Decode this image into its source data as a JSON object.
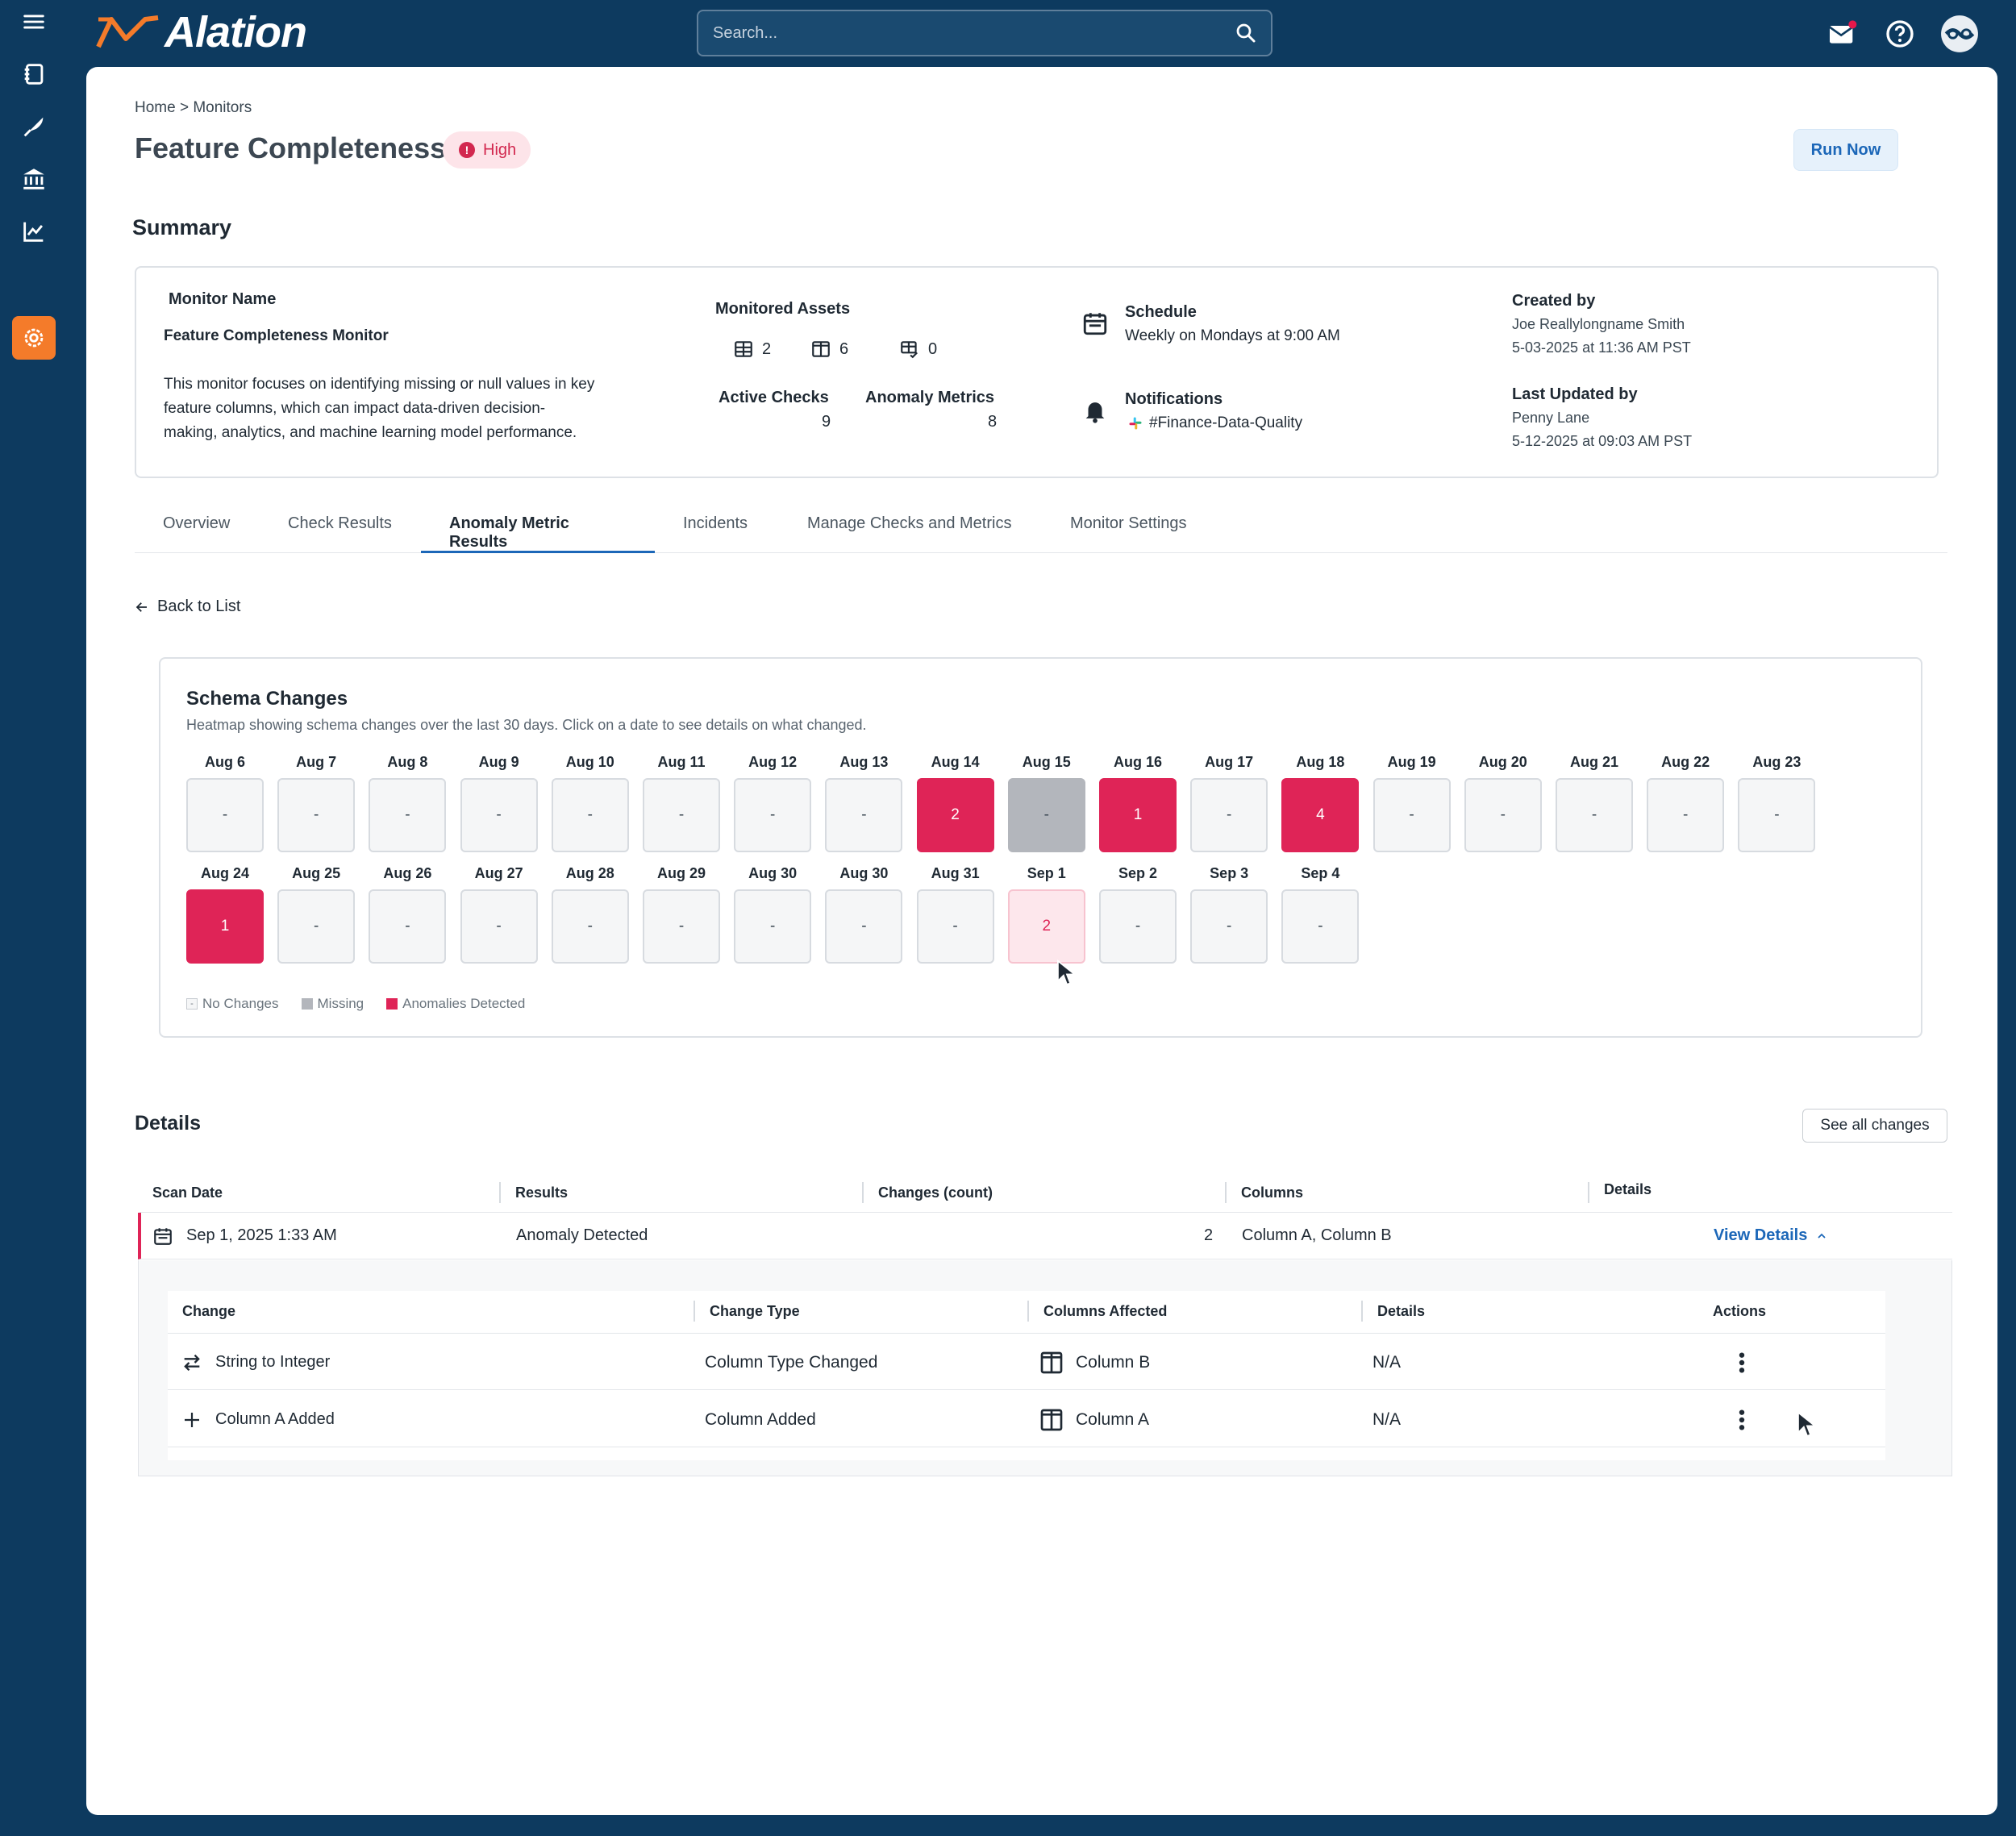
{
  "app": {
    "brand": "Alation",
    "accent": "#f47b2a",
    "nav_bg": "#0d3a5f"
  },
  "search": {
    "placeholder": "Search..."
  },
  "sidebar": {
    "items": [
      {
        "icon": "menu-icon"
      },
      {
        "icon": "catalog-icon"
      },
      {
        "icon": "compose-icon"
      },
      {
        "icon": "governance-icon"
      },
      {
        "icon": "analytics-icon"
      },
      {
        "icon": "data-quality-gear-icon",
        "active": true
      }
    ]
  },
  "header": {
    "breadcrumb": "Home > Monitors",
    "title": "Feature Completeness",
    "severity": "High",
    "run_now": "Run Now"
  },
  "summary": {
    "heading": "Summary",
    "monitor_name_label": "Monitor Name",
    "monitor_name": "Feature Completeness Monitor",
    "description_lines": [
      "This monitor focuses on identifying missing or null values in key",
      "feature columns, which can impact data-driven decision-",
      "making, analytics, and machine learning model performance."
    ],
    "monitored_assets_label": "Monitored Assets",
    "assets": {
      "tables": "2",
      "columns": "6",
      "queries": "0"
    },
    "active_checks_label": "Active Checks",
    "active_checks": "9",
    "anomaly_metrics_label": "Anomaly Metrics",
    "anomaly_metrics": "8",
    "schedule_label": "Schedule",
    "schedule": "Weekly on Mondays at 9:00 AM",
    "notifications_label": "Notifications",
    "notifications": "#Finance-Data-Quality",
    "created_by_label": "Created by",
    "created_by": "Joe Reallylongname Smith",
    "created_at": "5-03-2025 at 11:36 AM PST",
    "updated_by_label": "Last Updated by",
    "updated_by": "Penny Lane",
    "updated_at": "5-12-2025 at 09:03 AM PST"
  },
  "tabs": [
    "Overview",
    "Check Results",
    "Anomaly Metric Results",
    "Incidents",
    "Manage Checks and Metrics",
    "Monitor Settings"
  ],
  "active_tab": "Anomaly Metric Results",
  "back": "Back to List",
  "schema": {
    "title": "Schema Changes",
    "subtitle": "Heatmap showing schema changes over the last 30 days. Click on a date to see details on what changed.",
    "rows": [
      [
        {
          "date": "Aug 6",
          "value": "-",
          "state": "none"
        },
        {
          "date": "Aug 7",
          "value": "-",
          "state": "none"
        },
        {
          "date": "Aug 8",
          "value": "-",
          "state": "none"
        },
        {
          "date": "Aug 9",
          "value": "-",
          "state": "none"
        },
        {
          "date": "Aug 10",
          "value": "-",
          "state": "none"
        },
        {
          "date": "Aug 11",
          "value": "-",
          "state": "none"
        },
        {
          "date": "Aug 12",
          "value": "-",
          "state": "none"
        },
        {
          "date": "Aug 13",
          "value": "-",
          "state": "none"
        },
        {
          "date": "Aug 14",
          "value": "2",
          "state": "anomaly"
        },
        {
          "date": "Aug 15",
          "value": "-",
          "state": "missing"
        },
        {
          "date": "Aug 16",
          "value": "1",
          "state": "anomaly"
        },
        {
          "date": "Aug 17",
          "value": "-",
          "state": "none"
        },
        {
          "date": "Aug 18",
          "value": "4",
          "state": "anomaly"
        },
        {
          "date": "Aug 19",
          "value": "-",
          "state": "none"
        },
        {
          "date": "Aug 20",
          "value": "-",
          "state": "none"
        },
        {
          "date": "Aug 21",
          "value": "-",
          "state": "none"
        },
        {
          "date": "Aug 22",
          "value": "-",
          "state": "none"
        },
        {
          "date": "Aug 23",
          "value": "-",
          "state": "none"
        }
      ],
      [
        {
          "date": "Aug 24",
          "value": "1",
          "state": "anomaly"
        },
        {
          "date": "Aug 25",
          "value": "-",
          "state": "none"
        },
        {
          "date": "Aug 26",
          "value": "-",
          "state": "none"
        },
        {
          "date": "Aug 27",
          "value": "-",
          "state": "none"
        },
        {
          "date": "Aug 28",
          "value": "-",
          "state": "none"
        },
        {
          "date": "Aug 29",
          "value": "-",
          "state": "none"
        },
        {
          "date": "Aug 30",
          "value": "-",
          "state": "none"
        },
        {
          "date": "Aug 30",
          "value": "-",
          "state": "none"
        },
        {
          "date": "Aug 31",
          "value": "-",
          "state": "none"
        },
        {
          "date": "Sep 1",
          "value": "2",
          "state": "selected"
        },
        {
          "date": "Sep 2",
          "value": "-",
          "state": "none"
        },
        {
          "date": "Sep 3",
          "value": "-",
          "state": "none"
        },
        {
          "date": "Sep 4",
          "value": "-",
          "state": "none"
        }
      ]
    ],
    "legend": [
      "No Changes",
      "Missing",
      "Anomalies Detected"
    ]
  },
  "details": {
    "heading": "Details",
    "see_all": "See all changes",
    "columns": [
      "Scan Date",
      "Results",
      "Changes (count)",
      "Columns",
      "Details"
    ],
    "row": {
      "date": "Sep 1, 2025  1:33 AM",
      "result": "Anomaly Detected",
      "count": "2",
      "columns": "Column A, Column B",
      "link": "View Details"
    },
    "sub_columns": [
      "Change",
      "Change Type",
      "Columns Affected",
      "Details",
      "Actions"
    ],
    "sub_rows": [
      {
        "change": "String to Integer",
        "icon": "swap-icon",
        "type": "Column Type Changed",
        "column": "Column B",
        "details": "N/A"
      },
      {
        "change": "Column A Added",
        "icon": "plus-icon",
        "type": "Column Added",
        "column": "Column A",
        "details": "N/A"
      }
    ]
  }
}
